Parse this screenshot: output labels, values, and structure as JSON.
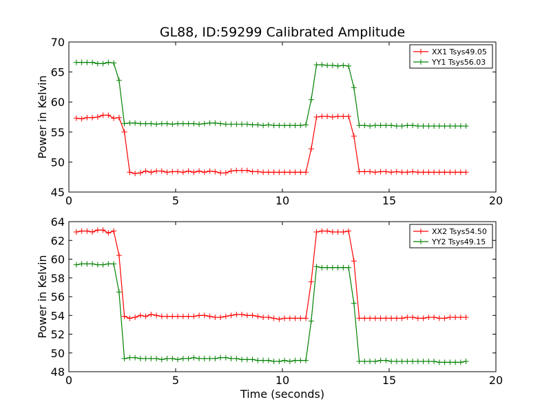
{
  "figure_title": "GL88, ID:59299 Calibrated Amplitude",
  "chart_data": [
    {
      "type": "line",
      "ylabel": "Power in Kelvin",
      "xlabel": "",
      "xlim": [
        0,
        20
      ],
      "ylim": [
        45,
        70
      ],
      "xticks": [
        0,
        5,
        10,
        15,
        20
      ],
      "yticks": [
        45,
        50,
        55,
        60,
        65,
        70
      ],
      "legend_position": "top-right",
      "grid": false,
      "x": [
        0.35,
        0.6,
        0.85,
        1.1,
        1.35,
        1.6,
        1.85,
        2.1,
        2.35,
        2.6,
        2.85,
        3.1,
        3.35,
        3.6,
        3.85,
        4.1,
        4.35,
        4.6,
        4.85,
        5.1,
        5.35,
        5.6,
        5.85,
        6.1,
        6.35,
        6.6,
        6.85,
        7.1,
        7.35,
        7.6,
        7.85,
        8.1,
        8.35,
        8.6,
        8.85,
        9.1,
        9.35,
        9.6,
        9.85,
        10.1,
        10.35,
        10.6,
        10.85,
        11.1,
        11.35,
        11.6,
        11.85,
        12.1,
        12.35,
        12.6,
        12.85,
        13.1,
        13.35,
        13.6,
        13.85,
        14.1,
        14.35,
        14.6,
        14.85,
        15.1,
        15.35,
        15.6,
        15.85,
        16.1,
        16.35,
        16.6,
        16.85,
        17.1,
        17.35,
        17.6,
        17.85,
        18.1,
        18.35,
        18.6
      ],
      "series": [
        {
          "name": "XX1 Tsys49.05",
          "color": "#ff0000",
          "values": [
            57.3,
            57.2,
            57.4,
            57.4,
            57.5,
            57.8,
            57.8,
            57.3,
            57.4,
            55.0,
            48.3,
            48.1,
            48.2,
            48.5,
            48.3,
            48.5,
            48.5,
            48.3,
            48.4,
            48.4,
            48.3,
            48.5,
            48.3,
            48.5,
            48.3,
            48.5,
            48.4,
            48.2,
            48.2,
            48.5,
            48.6,
            48.6,
            48.6,
            48.4,
            48.4,
            48.3,
            48.3,
            48.3,
            48.3,
            48.3,
            48.3,
            48.3,
            48.3,
            48.3,
            52.2,
            57.5,
            57.6,
            57.6,
            57.5,
            57.6,
            57.6,
            57.6,
            54.3,
            48.4,
            48.4,
            48.4,
            48.3,
            48.4,
            48.4,
            48.3,
            48.4,
            48.3,
            48.3,
            48.4,
            48.3,
            48.3,
            48.3,
            48.3,
            48.3,
            48.3,
            48.3,
            48.3,
            48.3,
            48.3
          ]
        },
        {
          "name": "YY1 Tsys56.03",
          "color": "#008000",
          "values": [
            66.6,
            66.6,
            66.6,
            66.6,
            66.4,
            66.4,
            66.6,
            66.5,
            63.6,
            56.4,
            56.5,
            56.5,
            56.4,
            56.4,
            56.4,
            56.3,
            56.4,
            56.4,
            56.3,
            56.4,
            56.4,
            56.4,
            56.4,
            56.3,
            56.4,
            56.5,
            56.5,
            56.4,
            56.3,
            56.3,
            56.3,
            56.3,
            56.3,
            56.2,
            56.2,
            56.1,
            56.2,
            56.1,
            56.1,
            56.1,
            56.1,
            56.1,
            56.1,
            56.2,
            60.4,
            66.2,
            66.2,
            66.1,
            66.1,
            66.0,
            66.1,
            66.0,
            62.4,
            56.1,
            56.1,
            56.0,
            56.1,
            56.1,
            56.1,
            56.1,
            56.0,
            56.0,
            56.1,
            56.1,
            56.0,
            56.0,
            56.0,
            56.0,
            56.0,
            56.0,
            56.0,
            56.0,
            56.0,
            56.0
          ]
        }
      ]
    },
    {
      "type": "line",
      "ylabel": "Power in Kelvin",
      "xlabel": "Time (seconds)",
      "xlim": [
        0,
        20
      ],
      "ylim": [
        48,
        64
      ],
      "xticks": [
        0,
        5,
        10,
        15,
        20
      ],
      "yticks": [
        48,
        50,
        52,
        54,
        56,
        58,
        60,
        62,
        64
      ],
      "legend_position": "top-right",
      "grid": false,
      "x": [
        0.35,
        0.6,
        0.85,
        1.1,
        1.35,
        1.6,
        1.85,
        2.1,
        2.35,
        2.6,
        2.85,
        3.1,
        3.35,
        3.6,
        3.85,
        4.1,
        4.35,
        4.6,
        4.85,
        5.1,
        5.35,
        5.6,
        5.85,
        6.1,
        6.35,
        6.6,
        6.85,
        7.1,
        7.35,
        7.6,
        7.85,
        8.1,
        8.35,
        8.6,
        8.85,
        9.1,
        9.35,
        9.6,
        9.85,
        10.1,
        10.35,
        10.6,
        10.85,
        11.1,
        11.35,
        11.6,
        11.85,
        12.1,
        12.35,
        12.6,
        12.85,
        13.1,
        13.35,
        13.6,
        13.85,
        14.1,
        14.35,
        14.6,
        14.85,
        15.1,
        15.35,
        15.6,
        15.85,
        16.1,
        16.35,
        16.6,
        16.85,
        17.1,
        17.35,
        17.6,
        17.85,
        18.1,
        18.35,
        18.6
      ],
      "series": [
        {
          "name": "XX2 Tsys54.50",
          "color": "#ff0000",
          "values": [
            62.9,
            63.0,
            63.0,
            62.9,
            63.1,
            63.1,
            62.8,
            63.0,
            60.4,
            53.9,
            53.7,
            53.8,
            54.0,
            53.9,
            54.1,
            54.0,
            53.9,
            53.9,
            53.9,
            53.9,
            53.9,
            53.9,
            53.9,
            54.0,
            54.0,
            53.9,
            53.8,
            53.8,
            53.9,
            54.0,
            54.1,
            54.1,
            54.0,
            54.0,
            53.9,
            53.8,
            53.8,
            53.7,
            53.6,
            53.7,
            53.7,
            53.7,
            53.7,
            53.7,
            57.6,
            62.9,
            63.0,
            63.0,
            62.9,
            62.9,
            62.9,
            63.0,
            59.8,
            53.7,
            53.7,
            53.7,
            53.7,
            53.7,
            53.7,
            53.7,
            53.7,
            53.7,
            53.8,
            53.8,
            53.7,
            53.7,
            53.8,
            53.8,
            53.7,
            53.7,
            53.8,
            53.8,
            53.8,
            53.8
          ]
        },
        {
          "name": "YY2 Tsys49.15",
          "color": "#008000",
          "values": [
            59.4,
            59.5,
            59.5,
            59.5,
            59.4,
            59.4,
            59.5,
            59.5,
            56.5,
            49.4,
            49.5,
            49.5,
            49.4,
            49.4,
            49.4,
            49.4,
            49.3,
            49.4,
            49.4,
            49.3,
            49.4,
            49.4,
            49.5,
            49.4,
            49.4,
            49.4,
            49.4,
            49.5,
            49.5,
            49.4,
            49.4,
            49.3,
            49.3,
            49.3,
            49.2,
            49.2,
            49.2,
            49.1,
            49.1,
            49.2,
            49.1,
            49.2,
            49.2,
            49.2,
            53.4,
            59.2,
            59.1,
            59.1,
            59.1,
            59.1,
            59.1,
            59.1,
            55.3,
            49.1,
            49.1,
            49.1,
            49.1,
            49.2,
            49.2,
            49.1,
            49.1,
            49.1,
            49.1,
            49.1,
            49.1,
            49.1,
            49.1,
            49.1,
            49.0,
            49.0,
            49.0,
            49.0,
            49.0,
            49.1
          ]
        }
      ]
    }
  ]
}
